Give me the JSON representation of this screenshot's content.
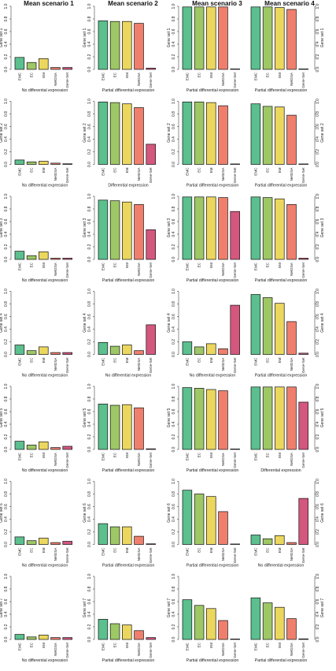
{
  "columns": [
    "Mean scenario 1",
    "Mean scenario 2",
    "Mean scenario 3",
    "Mean scenario 4"
  ],
  "chart_data": {
    "type": "bar",
    "layout": "grid 7 rows x 4 columns (row = gene set, column = mean scenario)",
    "categories": [
      "EMC",
      "EC",
      "EM",
      "NetGSA",
      "Gene-Set"
    ],
    "ylim": [
      0,
      1
    ],
    "yticks": [
      "0.0",
      "0.2",
      "0.4",
      "0.6",
      "0.8",
      "1.0"
    ],
    "colors": [
      "#5bbf8e",
      "#9ec766",
      "#ecd75e",
      "#ef7f6c",
      "#d4577e"
    ],
    "ylabel_side": "left for columns 1-3, right for column 4",
    "grid": false,
    "ylabels": [
      "Gene set 1",
      "Gene set 2",
      "Gene set 3",
      "Gene set 4",
      "Gene set 5",
      "Gene set 6",
      "Gene set 7"
    ],
    "panels": [
      {
        "row": 1,
        "column": "Mean scenario 1",
        "xlabel": "No differential expression",
        "values": [
          0.19,
          0.11,
          0.17,
          0.03,
          0.03
        ]
      },
      {
        "row": 1,
        "column": "Mean scenario 2",
        "xlabel": "Partial differential expression",
        "values": [
          0.77,
          0.76,
          0.76,
          0.73,
          0.02
        ]
      },
      {
        "row": 1,
        "column": "Mean scenario 3",
        "xlabel": "Partial differential expression",
        "values": [
          0.99,
          0.99,
          0.99,
          0.99,
          0.0
        ]
      },
      {
        "row": 1,
        "column": "Mean scenario 4",
        "xlabel": "Partial differential expression",
        "values": [
          0.99,
          0.99,
          0.98,
          0.95,
          0.0
        ]
      },
      {
        "row": 2,
        "column": "Mean scenario 1",
        "xlabel": "No differential expression",
        "values": [
          0.07,
          0.04,
          0.05,
          0.02,
          0.01
        ]
      },
      {
        "row": 2,
        "column": "Mean scenario 2",
        "xlabel": "Differential expression",
        "values": [
          0.99,
          0.98,
          0.96,
          0.9,
          0.32
        ]
      },
      {
        "row": 2,
        "column": "Mean scenario 3",
        "xlabel": "Partial differential expression",
        "values": [
          0.99,
          0.99,
          0.98,
          0.93,
          0.0
        ]
      },
      {
        "row": 2,
        "column": "Mean scenario 4",
        "xlabel": "Partial differential expression",
        "values": [
          0.96,
          0.92,
          0.91,
          0.78,
          0.0
        ]
      },
      {
        "row": 3,
        "column": "Mean scenario 1",
        "xlabel": "No differential expression",
        "values": [
          0.13,
          0.06,
          0.12,
          0.02,
          0.02
        ]
      },
      {
        "row": 3,
        "column": "Mean scenario 2",
        "xlabel": "Partial differential expression",
        "values": [
          0.94,
          0.93,
          0.91,
          0.87,
          0.47
        ]
      },
      {
        "row": 3,
        "column": "Mean scenario 3",
        "xlabel": "Partial differential expression",
        "values": [
          0.99,
          0.99,
          0.99,
          0.98,
          0.76
        ]
      },
      {
        "row": 3,
        "column": "Mean scenario 4",
        "xlabel": "Partial differential expression",
        "values": [
          0.99,
          0.98,
          0.96,
          0.87,
          0.02
        ]
      },
      {
        "row": 4,
        "column": "Mean scenario 1",
        "xlabel": "No differential expression",
        "values": [
          0.15,
          0.06,
          0.12,
          0.03,
          0.03
        ]
      },
      {
        "row": 4,
        "column": "Mean scenario 2",
        "xlabel": "No differential expression",
        "values": [
          0.19,
          0.13,
          0.15,
          0.06,
          0.47
        ]
      },
      {
        "row": 4,
        "column": "Mean scenario 3",
        "xlabel": "No differential expression",
        "values": [
          0.2,
          0.12,
          0.17,
          0.09,
          0.78
        ]
      },
      {
        "row": 4,
        "column": "Mean scenario 4",
        "xlabel": "Partial differential expression",
        "values": [
          0.95,
          0.9,
          0.81,
          0.52,
          0.02
        ]
      },
      {
        "row": 5,
        "column": "Mean scenario 1",
        "xlabel": "No differential expression",
        "values": [
          0.13,
          0.07,
          0.12,
          0.03,
          0.05
        ]
      },
      {
        "row": 5,
        "column": "Mean scenario 2",
        "xlabel": "Partial differential expression",
        "values": [
          0.72,
          0.7,
          0.71,
          0.66,
          0.01
        ]
      },
      {
        "row": 5,
        "column": "Mean scenario 3",
        "xlabel": "Partial differential expression",
        "values": [
          0.98,
          0.97,
          0.95,
          0.93,
          0.0
        ]
      },
      {
        "row": 5,
        "column": "Mean scenario 4",
        "xlabel": "Differential expression",
        "values": [
          0.99,
          0.99,
          0.99,
          0.99,
          0.75
        ]
      },
      {
        "row": 6,
        "column": "Mean scenario 1",
        "xlabel": "No differential expression",
        "values": [
          0.12,
          0.06,
          0.1,
          0.03,
          0.05
        ]
      },
      {
        "row": 6,
        "column": "Mean scenario 2",
        "xlabel": "Partial differential expression",
        "values": [
          0.33,
          0.28,
          0.28,
          0.13,
          0.01
        ]
      },
      {
        "row": 6,
        "column": "Mean scenario 3",
        "xlabel": "Partial differential expression",
        "values": [
          0.86,
          0.8,
          0.76,
          0.52,
          0.0
        ]
      },
      {
        "row": 6,
        "column": "Mean scenario 4",
        "xlabel": "No differential expression",
        "values": [
          0.15,
          0.09,
          0.14,
          0.03,
          0.73
        ]
      },
      {
        "row": 7,
        "column": "Mean scenario 1",
        "xlabel": "No differential expression",
        "values": [
          0.08,
          0.04,
          0.07,
          0.03,
          0.03
        ]
      },
      {
        "row": 7,
        "column": "Mean scenario 2",
        "xlabel": "Partial differential expression",
        "values": [
          0.32,
          0.25,
          0.23,
          0.14,
          0.03
        ]
      },
      {
        "row": 7,
        "column": "Mean scenario 3",
        "xlabel": "Partial differential expression",
        "values": [
          0.63,
          0.54,
          0.49,
          0.3,
          0.0
        ]
      },
      {
        "row": 7,
        "column": "Mean scenario 4",
        "xlabel": "Partial differential expression",
        "values": [
          0.66,
          0.58,
          0.51,
          0.33,
          0.01
        ]
      }
    ]
  }
}
